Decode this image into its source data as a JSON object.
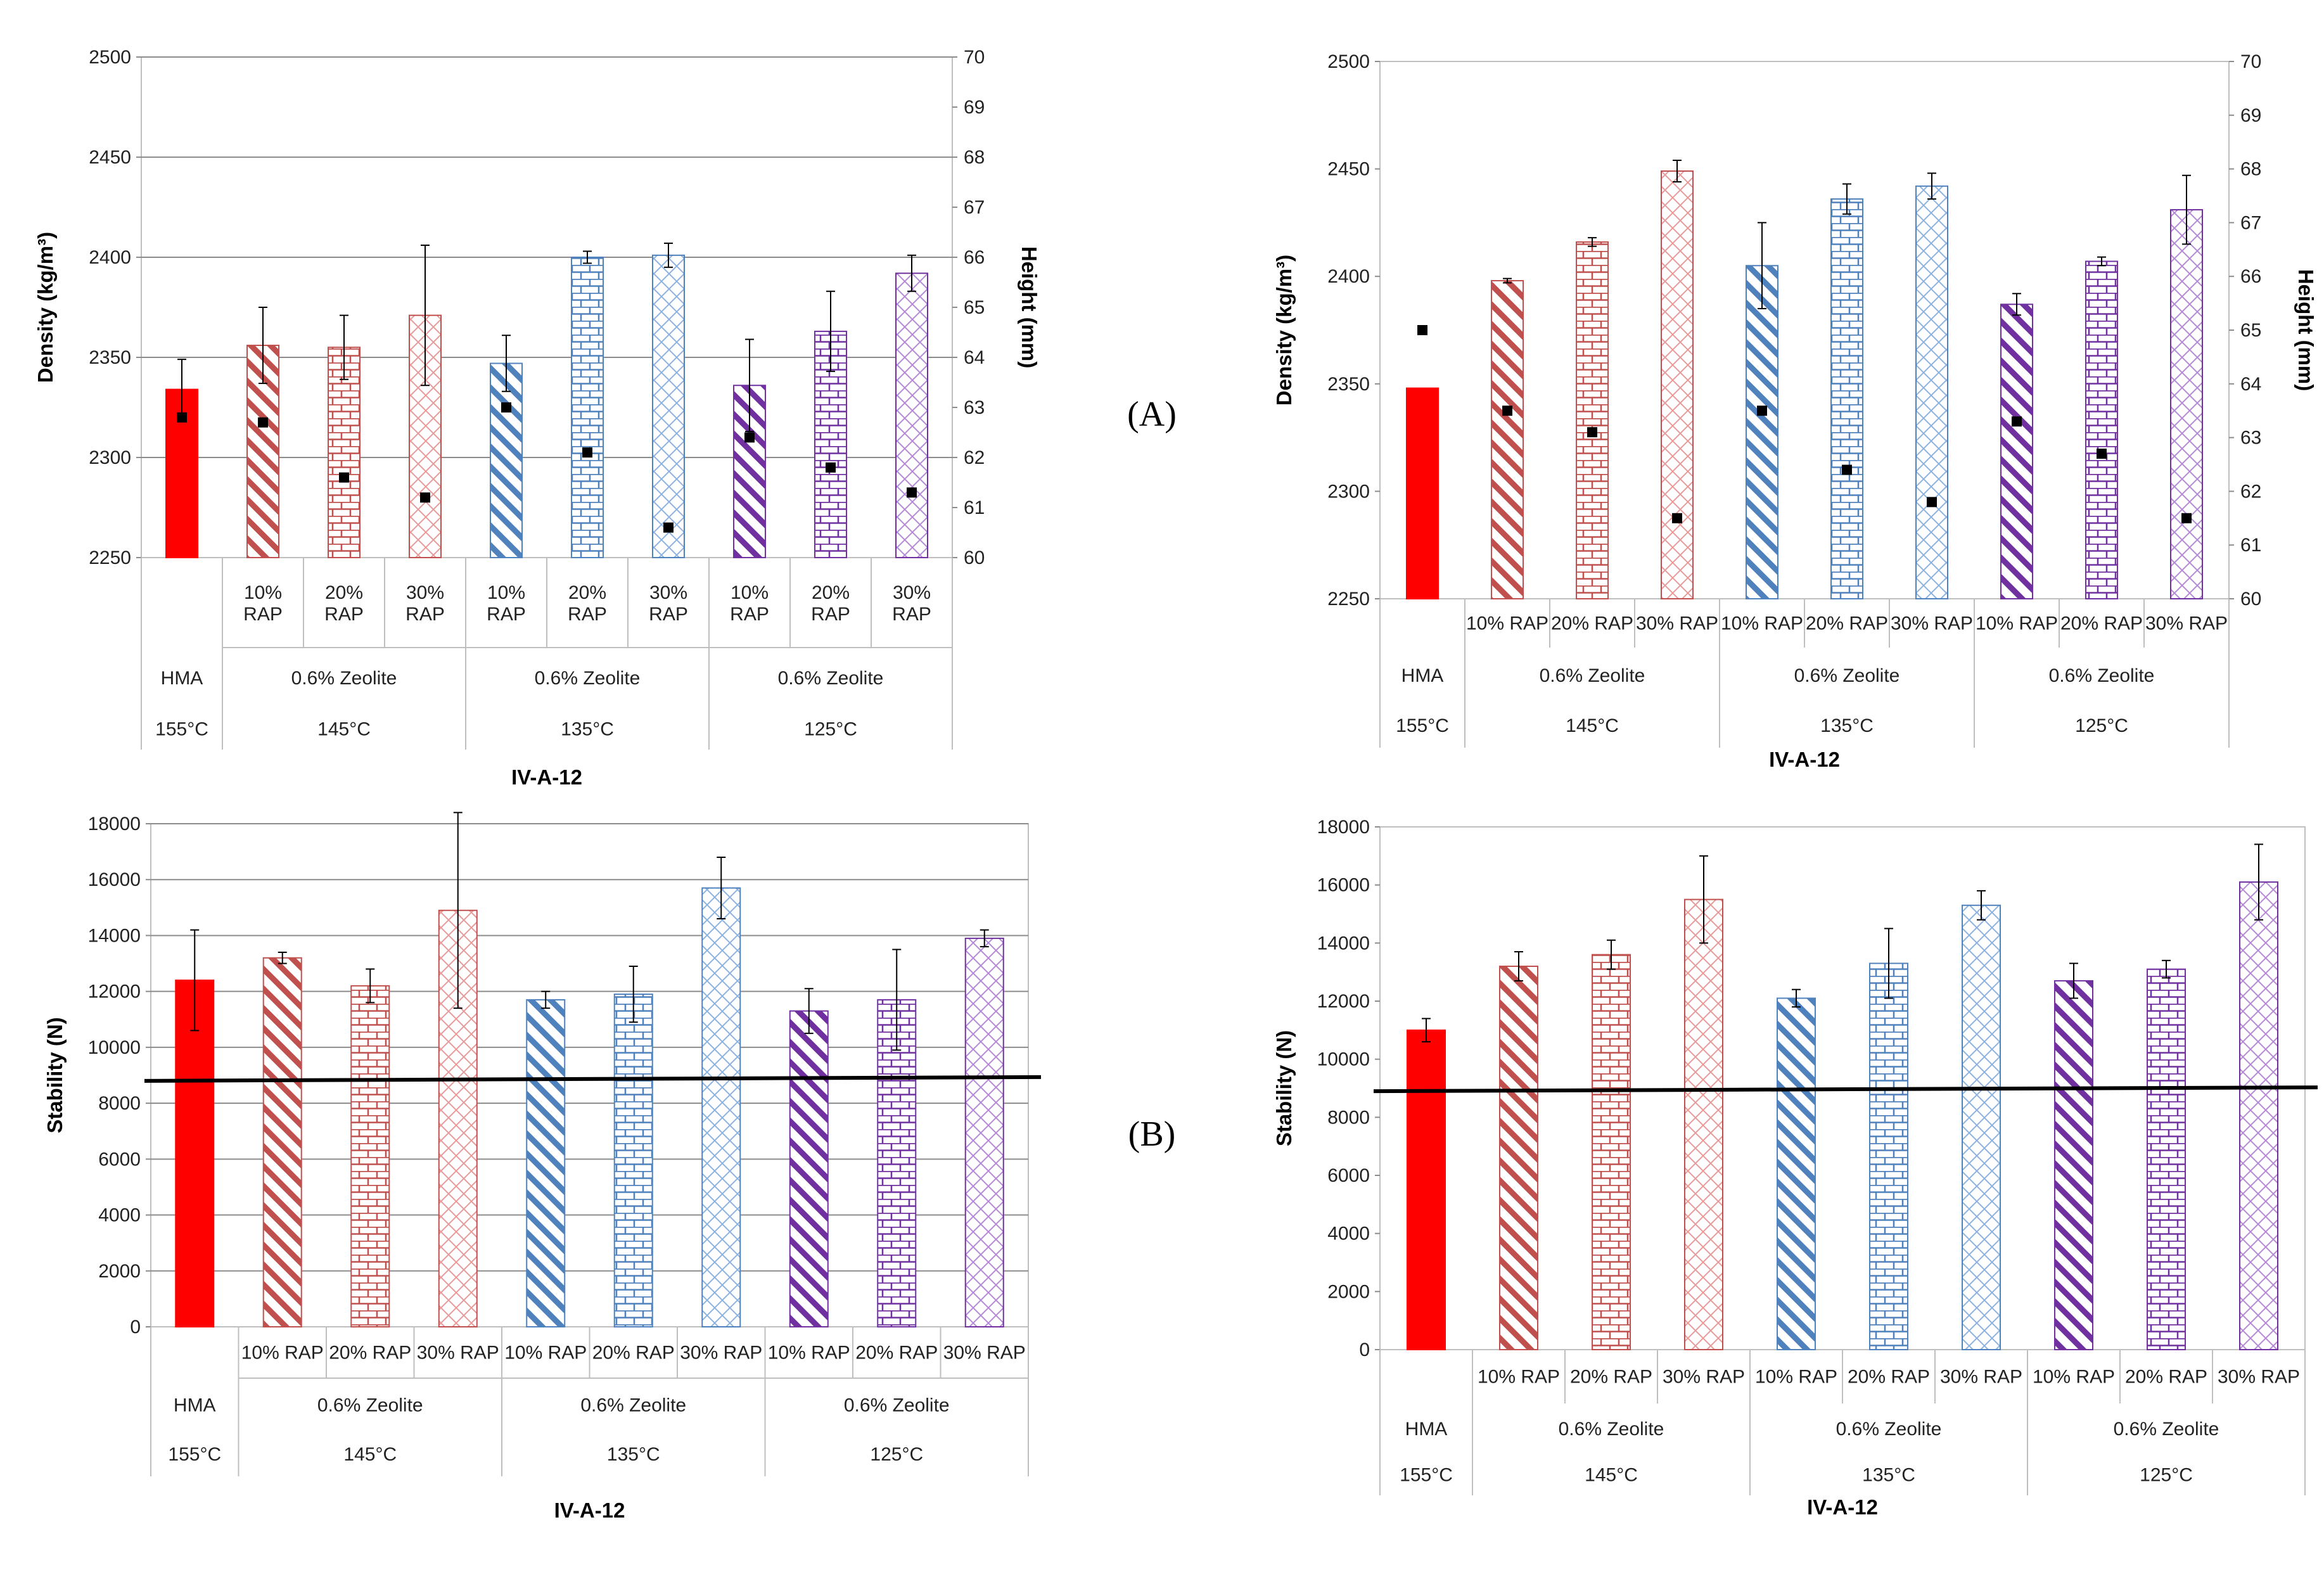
{
  "figure": {
    "label_a": "(A)",
    "label_b": "(B)"
  },
  "colors": {
    "hma": "#ff0000",
    "zeolite_145": "#c0504d",
    "zeolite_135": "#4f81bd",
    "zeolite_125": "#7030a0"
  },
  "chart_data": [
    {
      "id": "A-left",
      "type": "bar",
      "title": "IV-A-12",
      "ylabel": "Density (kg/m³)",
      "y2label": "Height (mm)",
      "ylim": [
        2250,
        2500
      ],
      "yticks": [
        "2250",
        "2300",
        "2350",
        "2400",
        "2450",
        "2500"
      ],
      "y2lim": [
        60,
        70
      ],
      "y2ticks": [
        "60",
        "61",
        "62",
        "63",
        "64",
        "65",
        "66",
        "67",
        "68",
        "69",
        "70"
      ],
      "grid": true,
      "categories": [
        "HMA",
        "10% RAP",
        "20% RAP",
        "30% RAP",
        "10% RAP",
        "20% RAP",
        "30% RAP",
        "10% RAP",
        "20% RAP",
        "30% RAP"
      ],
      "cat_wrap": true,
      "groups": [
        {
          "label": "HMA",
          "temp": "155°C",
          "span": 1
        },
        {
          "label": "0.6% Zeolite",
          "temp": "145°C",
          "span": 3
        },
        {
          "label": "0.6% Zeolite",
          "temp": "135°C",
          "span": 3
        },
        {
          "label": "0.6% Zeolite",
          "temp": "125°C",
          "span": 3
        }
      ],
      "density": [
        2334,
        2356,
        2355,
        2371,
        2347,
        2400,
        2401,
        2336,
        2363,
        2392
      ],
      "density_err": [
        15,
        19,
        16,
        35,
        14,
        3,
        6,
        23,
        20,
        9
      ],
      "height": [
        62.8,
        62.7,
        61.6,
        61.2,
        63.0,
        62.1,
        60.6,
        62.4,
        61.8,
        61.3
      ]
    },
    {
      "id": "A-right",
      "type": "bar",
      "title": "IV-A-12",
      "ylabel": "Density (kg/m³)",
      "y2label": "Height (mm)",
      "ylim": [
        2250,
        2500
      ],
      "yticks": [
        "2250",
        "2300",
        "2350",
        "2400",
        "2450",
        "2500"
      ],
      "y2lim": [
        60,
        70
      ],
      "y2ticks": [
        "60",
        "61",
        "62",
        "63",
        "64",
        "65",
        "66",
        "67",
        "68",
        "69",
        "70"
      ],
      "grid": false,
      "categories": [
        "HMA",
        "10% RAP",
        "20% RAP",
        "30% RAP",
        "10% RAP",
        "20% RAP",
        "30% RAP",
        "10% RAP",
        "20% RAP",
        "30% RAP"
      ],
      "cat_wrap": false,
      "groups": [
        {
          "label": "HMA",
          "temp": "155°C",
          "span": 1
        },
        {
          "label": "0.6% Zeolite",
          "temp": "145°C",
          "span": 3
        },
        {
          "label": "0.6% Zeolite",
          "temp": "135°C",
          "span": 3
        },
        {
          "label": "0.6% Zeolite",
          "temp": "125°C",
          "span": 3
        }
      ],
      "density": [
        2348,
        2398,
        2416,
        2449,
        2405,
        2436,
        2442,
        2387,
        2407,
        2431
      ],
      "density_err": [
        0,
        1,
        2,
        5,
        20,
        7,
        6,
        5,
        2,
        16
      ],
      "height": [
        65.0,
        63.5,
        63.1,
        61.5,
        63.5,
        62.4,
        61.8,
        63.3,
        62.7,
        61.5
      ]
    },
    {
      "id": "B-left",
      "type": "bar",
      "title": "IV-A-12",
      "ylabel": "Stability (N)",
      "ylim": [
        0,
        18000
      ],
      "yticks": [
        "0",
        "2000",
        "4000",
        "6000",
        "8000",
        "10000",
        "12000",
        "14000",
        "16000",
        "18000"
      ],
      "grid": true,
      "reference_line": 8800,
      "categories": [
        "HMA",
        "10% RAP",
        "20% RAP",
        "30% RAP",
        "10% RAP",
        "20% RAP",
        "30% RAP",
        "10% RAP",
        "20% RAP",
        "30% RAP"
      ],
      "groups": [
        {
          "label": "HMA",
          "temp": "155°C",
          "span": 1
        },
        {
          "label": "0.6% Zeolite",
          "temp": "145°C",
          "span": 3
        },
        {
          "label": "0.6% Zeolite",
          "temp": "135°C",
          "span": 3
        },
        {
          "label": "0.6% Zeolite",
          "temp": "125°C",
          "span": 3
        }
      ],
      "stability": [
        12400,
        13200,
        12200,
        14900,
        11700,
        11900,
        15700,
        11300,
        11700,
        13900
      ],
      "stability_err": [
        1800,
        200,
        600,
        3500,
        300,
        1000,
        1100,
        800,
        1800,
        300
      ]
    },
    {
      "id": "B-right",
      "type": "bar",
      "title": "IV-A-12",
      "ylabel": "Stability (N)",
      "ylim": [
        0,
        18000
      ],
      "yticks": [
        "0",
        "2000",
        "4000",
        "6000",
        "8000",
        "10000",
        "12000",
        "14000",
        "16000",
        "18000"
      ],
      "grid": false,
      "reference_line": 8900,
      "categories": [
        "HMA",
        "10% RAP",
        "20% RAP",
        "30% RAP",
        "10% RAP",
        "20% RAP",
        "30% RAP",
        "10% RAP",
        "20% RAP",
        "30% RAP"
      ],
      "groups": [
        {
          "label": "HMA",
          "temp": "155°C",
          "span": 1
        },
        {
          "label": "0.6% Zeolite",
          "temp": "145°C",
          "span": 3
        },
        {
          "label": "0.6% Zeolite",
          "temp": "135°C",
          "span": 3
        },
        {
          "label": "0.6% Zeolite",
          "temp": "125°C",
          "span": 3
        }
      ],
      "stability": [
        11000,
        13200,
        13600,
        15500,
        12100,
        13300,
        15300,
        12700,
        13100,
        16100
      ],
      "stability_err": [
        400,
        500,
        500,
        1500,
        300,
        1200,
        500,
        600,
        300,
        1300
      ]
    }
  ]
}
